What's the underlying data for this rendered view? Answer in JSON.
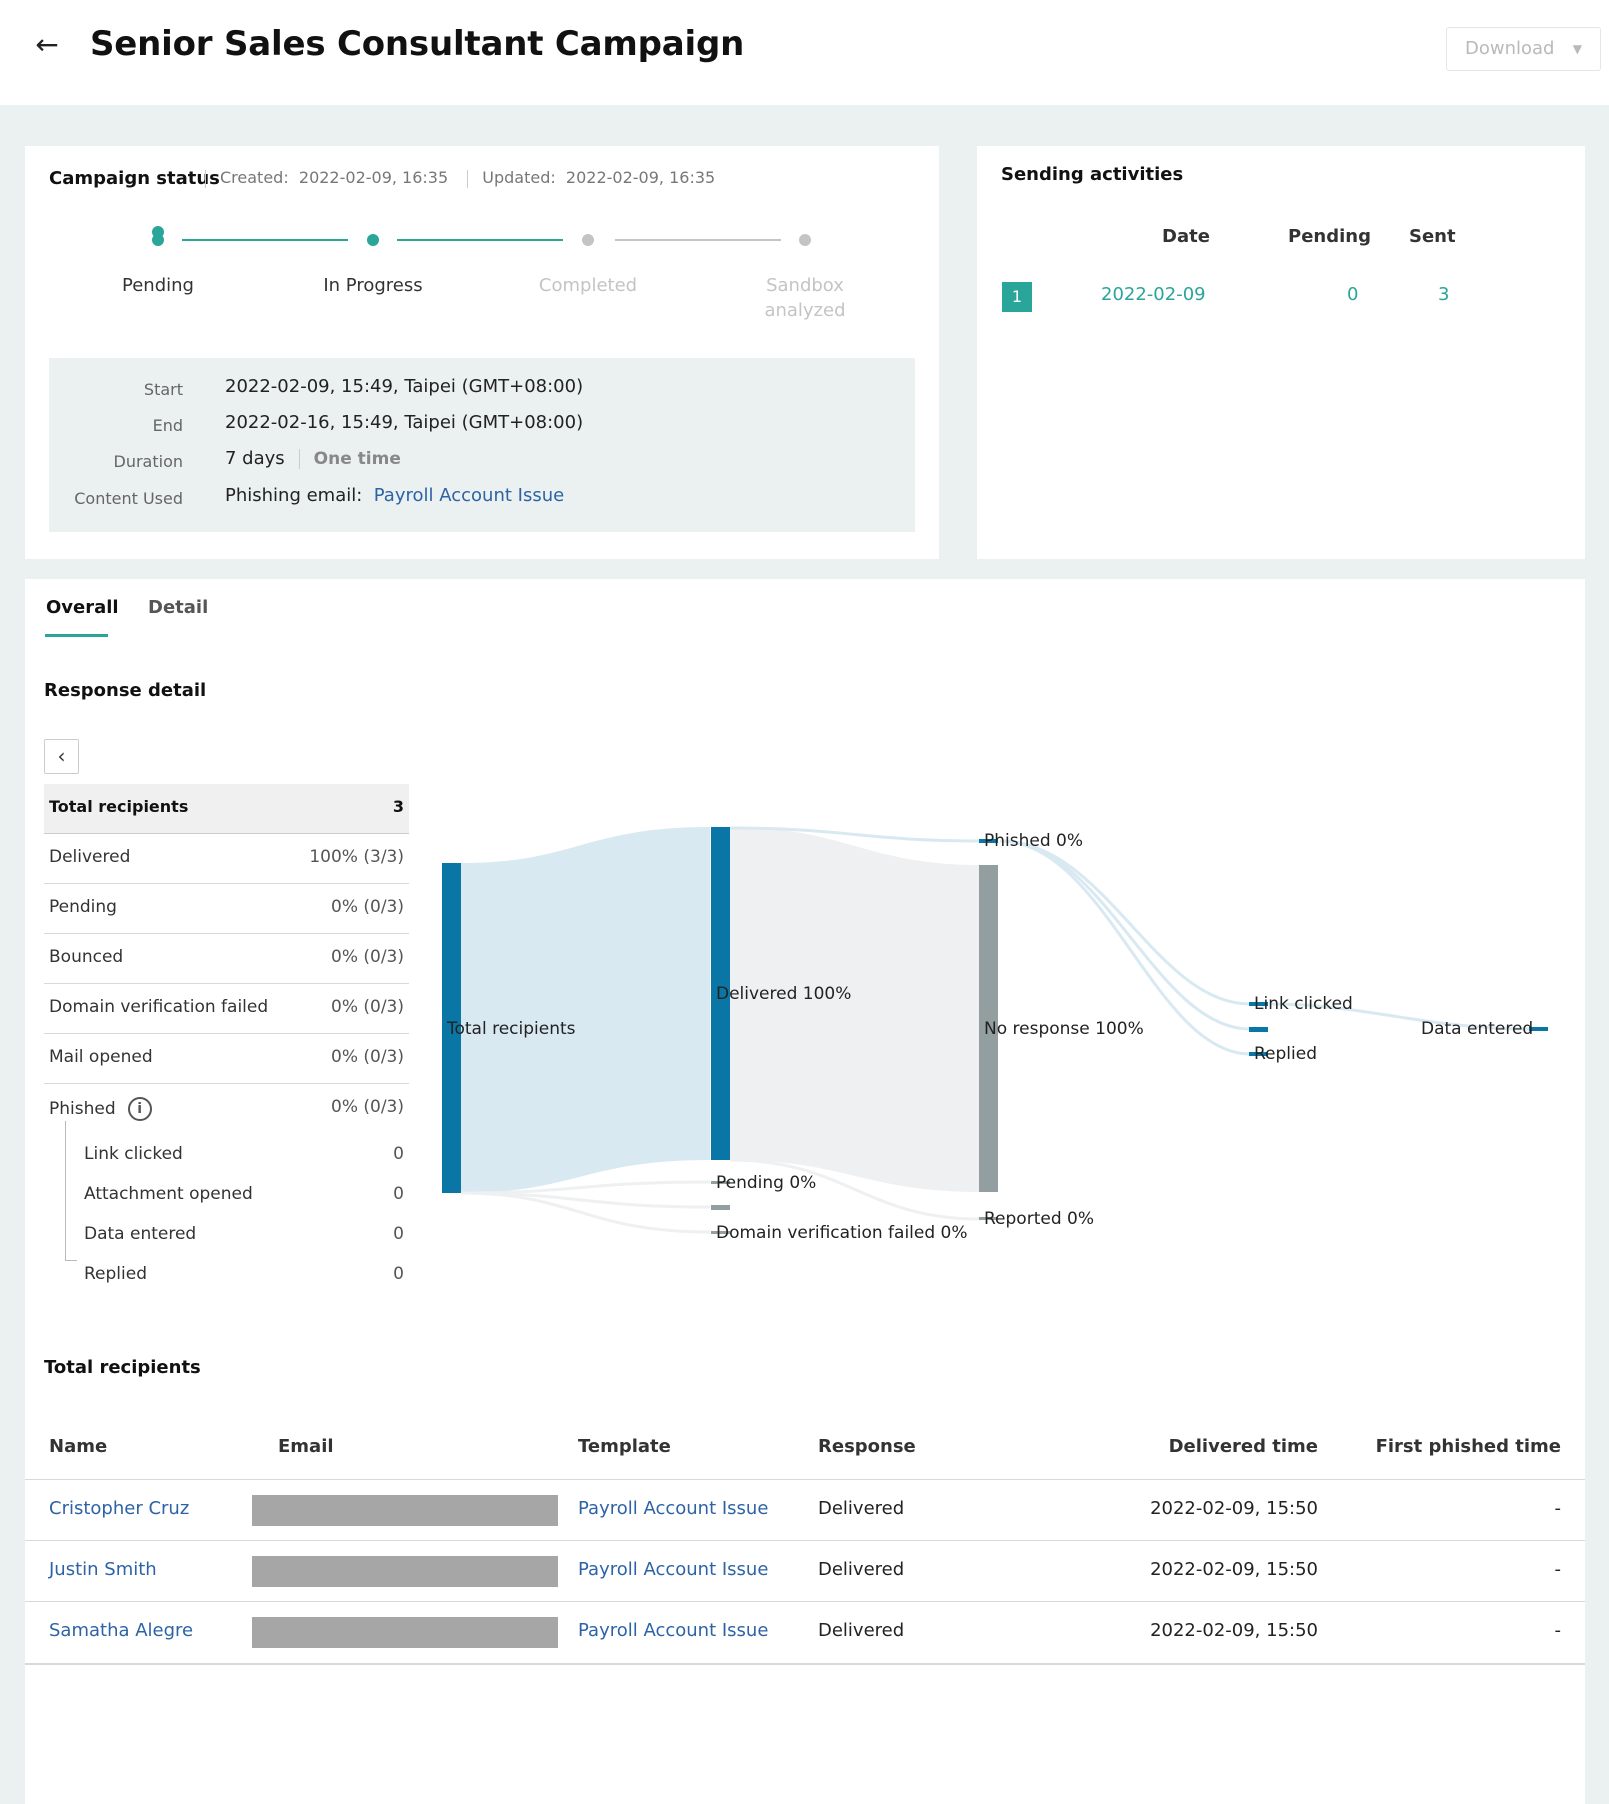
{
  "header": {
    "title": "Senior Sales Consultant Campaign",
    "download_label": "Download"
  },
  "campaign_status": {
    "title": "Campaign status",
    "created_label": "Created:",
    "created": "2022-02-09, 16:35",
    "updated_label": "Updated:",
    "updated": "2022-02-09, 16:35",
    "steps": [
      {
        "label": "Pending",
        "done": true
      },
      {
        "label": "In Progress",
        "done": true
      },
      {
        "label": "Completed",
        "done": false
      },
      {
        "label": "Sandbox analyzed",
        "done": false
      }
    ],
    "info": {
      "start_label": "Start",
      "start": "2022-02-09, 15:49, Taipei (GMT+08:00)",
      "end_label": "End",
      "end": "2022-02-16, 15:49, Taipei (GMT+08:00)",
      "duration_label": "Duration",
      "duration": "7 days",
      "frequency": "One time",
      "content_label": "Content Used",
      "content_type": "Phishing email:",
      "content_name": "Payroll Account Issue"
    }
  },
  "sending_activities": {
    "title": "Sending activities",
    "columns": {
      "date": "Date",
      "pending": "Pending",
      "sent": "Sent"
    },
    "rows": [
      {
        "index": "1",
        "date": "2022-02-09",
        "pending": "0",
        "sent": "3"
      }
    ]
  },
  "tabs": [
    {
      "label": "Overall",
      "active": true
    },
    {
      "label": "Detail",
      "active": false
    }
  ],
  "response_detail": {
    "title": "Response detail",
    "header": {
      "label": "Total recipients",
      "value": "3"
    },
    "rows": [
      {
        "label": "Delivered",
        "value": "100% (3/3)"
      },
      {
        "label": "Pending",
        "value": "0% (0/3)"
      },
      {
        "label": "Bounced",
        "value": "0% (0/3)"
      },
      {
        "label": "Domain verification failed",
        "value": "0% (0/3)"
      },
      {
        "label": "Mail opened",
        "value": "0% (0/3)"
      },
      {
        "label": "Phished",
        "value": "0% (0/3)"
      }
    ],
    "phished_sub": [
      {
        "label": "Link clicked",
        "value": "0"
      },
      {
        "label": "Attachment opened",
        "value": "0"
      },
      {
        "label": "Data entered",
        "value": "0"
      },
      {
        "label": "Replied",
        "value": "0"
      }
    ]
  },
  "sankey": {
    "labels": {
      "total": "Total recipients",
      "delivered": "Delivered 100%",
      "pending": "Pending 0%",
      "domain_failed": "Domain verification failed 0%",
      "phished": "Phished 0%",
      "no_response": "No response 100%",
      "reported": "Reported 0%",
      "link_clicked": "Link clicked",
      "replied": "Replied",
      "data_entered": "Data entered"
    },
    "colors": {
      "primary": "#0a76a6",
      "gray": "#939ea0",
      "flow_blue": "#d8e9f2",
      "flow_gray": "#eef0f1"
    }
  },
  "recipients": {
    "title": "Total recipients",
    "columns": {
      "name": "Name",
      "email": "Email",
      "template": "Template",
      "response": "Response",
      "delivered_time": "Delivered time",
      "first_phished_time": "First phished time"
    },
    "rows": [
      {
        "name": "Cristopher Cruz",
        "template": "Payroll Account Issue",
        "response": "Delivered",
        "delivered_time": "2022-02-09, 15:50",
        "first_phished_time": "-"
      },
      {
        "name": "Justin Smith",
        "template": "Payroll Account Issue",
        "response": "Delivered",
        "delivered_time": "2022-02-09, 15:50",
        "first_phished_time": "-"
      },
      {
        "name": "Samatha Alegre",
        "template": "Payroll Account Issue",
        "response": "Delivered",
        "delivered_time": "2022-02-09, 15:50",
        "first_phished_time": "-"
      }
    ]
  },
  "colors": {
    "accent": "#2aa59a",
    "link": "#2d63a6"
  }
}
